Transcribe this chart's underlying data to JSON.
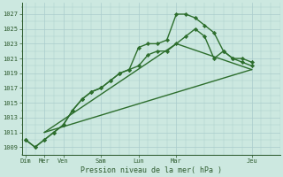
{
  "background_color": "#cce8e0",
  "grid_color": "#aacccc",
  "line_color": "#2d6e2d",
  "marker_color": "#2d6e2d",
  "xlabel": "Pression niveau de la mer( hPa )",
  "ylim": [
    1008,
    1028.5
  ],
  "yticks": [
    1009,
    1011,
    1013,
    1015,
    1017,
    1019,
    1021,
    1023,
    1025,
    1027
  ],
  "x_major_positions": [
    0,
    1,
    2,
    4,
    6,
    8,
    12
  ],
  "x_major_labels": [
    "Dim",
    "Mer",
    "Ven",
    "Sam",
    "Lun",
    "Mar",
    "Jeu"
  ],
  "xlim": [
    -0.2,
    12.8
  ],
  "lines": [
    {
      "x": [
        0,
        0.5,
        1,
        1.5,
        2,
        2.5,
        3,
        3.5,
        4,
        4.5,
        5,
        5.5,
        6,
        6.5,
        7,
        7.5,
        8,
        8.5,
        9,
        9.5,
        10,
        10.5,
        11,
        11.5,
        12
      ],
      "y": [
        1010,
        1009,
        1010,
        1011,
        1012,
        1014,
        1015.5,
        1016.5,
        1017,
        1018,
        1019,
        1019.5,
        1022.5,
        1023,
        1023,
        1023.5,
        1027,
        1027,
        1026.5,
        1025.5,
        1024.5,
        1022,
        1021,
        1021,
        1020.5
      ],
      "lw": 1.0,
      "marker": "D",
      "ms": 2.2
    },
    {
      "x": [
        0,
        0.5,
        1,
        1.5,
        2,
        2.5,
        3,
        3.5,
        4,
        4.5,
        5,
        5.5,
        6,
        6.5,
        7,
        7.5,
        8,
        8.5,
        9,
        9.5,
        10,
        10.5,
        11,
        11.5,
        12
      ],
      "y": [
        1010,
        1009,
        1010,
        1011,
        1012,
        1014,
        1015.5,
        1016.5,
        1017,
        1018,
        1019,
        1019.5,
        1020,
        1021.5,
        1022,
        1022,
        1023,
        1024,
        1025,
        1024,
        1021,
        1022,
        1021,
        1020.5,
        1020
      ],
      "lw": 1.0,
      "marker": "D",
      "ms": 2.2
    },
    {
      "x": [
        1,
        12
      ],
      "y": [
        1011,
        1019.5
      ],
      "lw": 1.0,
      "marker": null,
      "ms": 0
    },
    {
      "x": [
        1,
        8,
        12
      ],
      "y": [
        1011,
        1023,
        1019.5
      ],
      "lw": 1.0,
      "marker": null,
      "ms": 0
    }
  ]
}
